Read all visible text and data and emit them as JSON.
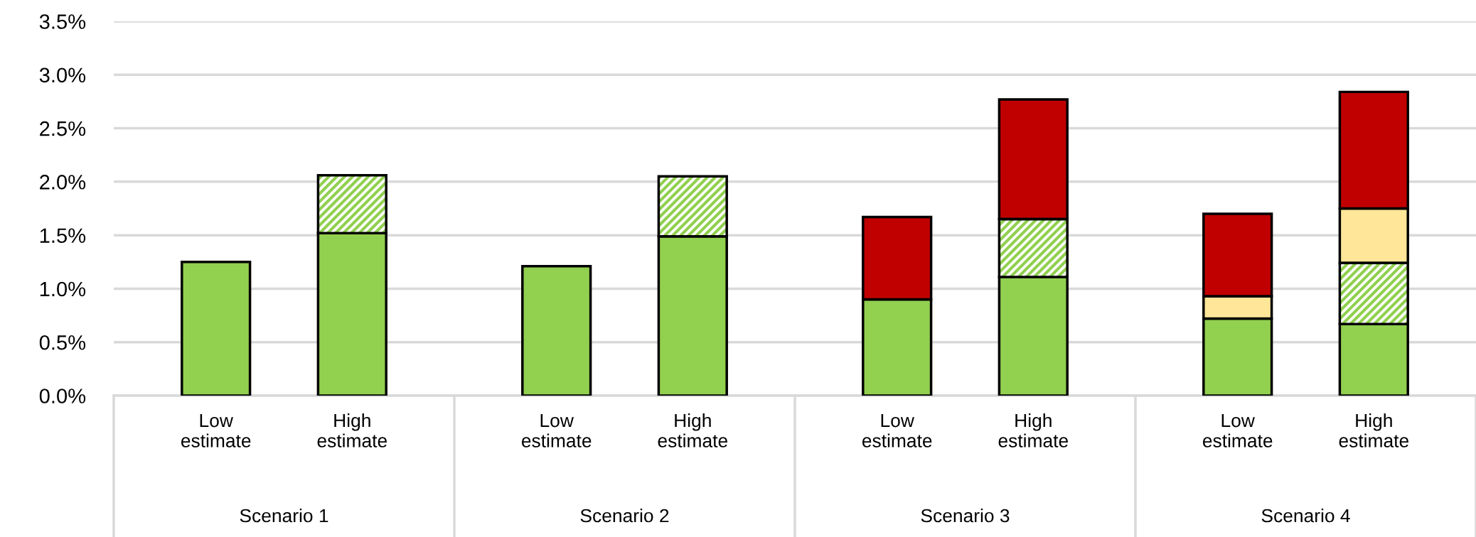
{
  "chart_data": {
    "type": "bar",
    "stacked": true,
    "categories": [
      "Low\nestimate",
      "High\nestimate",
      "Low\nestimate",
      "High\nestimate",
      "Low\nestimate",
      "High\nestimate",
      "Low\nestimate",
      "High\nestimate"
    ],
    "series": [
      {
        "color": "#92d050",
        "values": [
          1.25,
          1.52,
          1.21,
          1.49,
          0.9,
          1.11,
          0.72,
          0.67
        ]
      },
      {
        "color": "#92d050",
        "values": [
          null,
          0.54,
          null,
          0.56,
          null,
          0.54,
          null,
          0.57
        ]
      },
      {
        "color": "#ffe699",
        "values": [
          null,
          null,
          null,
          null,
          null,
          null,
          0.21,
          0.51
        ]
      },
      {
        "color": "#c00000",
        "values": [
          null,
          null,
          null,
          null,
          0.77,
          1.12,
          0.77,
          1.09
        ]
      }
    ],
    "ylim": [
      0,
      3.5
    ],
    "yticks": [
      {
        "value": 0,
        "label": "0.0%"
      },
      {
        "value": 0.5,
        "label": "0.5%"
      },
      {
        "value": 1.0,
        "label": "1.0%"
      },
      {
        "value": 1.5,
        "label": "1.5%"
      },
      {
        "value": 2.0,
        "label": "2.0%"
      },
      {
        "value": 2.5,
        "label": "2.5%"
      },
      {
        "value": 3.0,
        "label": "3.0%"
      },
      {
        "value": 3.5,
        "label": "3.5%"
      }
    ],
    "grid": "y",
    "annotations": [
      "Scenario 1",
      "Scenario 2",
      "Scenario 3",
      "Scenario 4"
    ]
  }
}
